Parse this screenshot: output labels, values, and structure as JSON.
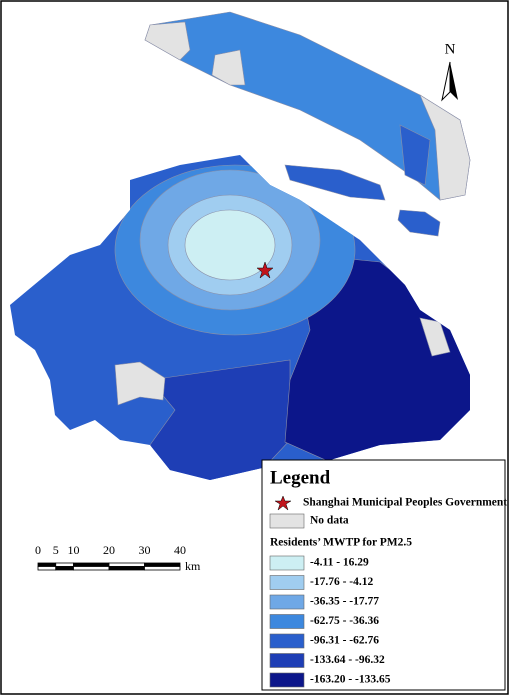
{
  "legend": {
    "title": "Legend",
    "government": "Shanghai Municipal Peoples Government",
    "no_data": "No data",
    "no_data_color": "#e3e3e3",
    "variable_title": "Residents’ MWTP for PM2.5",
    "classes": [
      {
        "label": "-4.11 - 16.29",
        "color": "#cdeff3"
      },
      {
        "label": "-17.76 - -4.12",
        "color": "#a0cdf0"
      },
      {
        "label": "-36.35 - -17.77",
        "color": "#6fa8e6"
      },
      {
        "label": "-62.75 - -36.36",
        "color": "#3d88de"
      },
      {
        "label": "-96.31 - -62.76",
        "color": "#2a5fcc"
      },
      {
        "label": "-133.64 - -96.32",
        "color": "#1e3eb5"
      },
      {
        "label": "-163.20 - -133.65",
        "color": "#0c168a"
      }
    ]
  },
  "scale_bar": {
    "ticks": [
      0,
      5,
      10,
      20,
      30,
      40
    ],
    "unit": "km"
  },
  "north_arrow": {
    "label": "N"
  }
}
